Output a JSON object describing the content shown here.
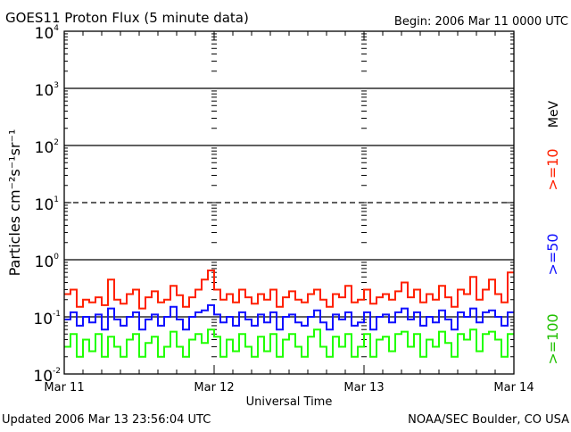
{
  "chart_data": {
    "type": "line",
    "title": "GOES11 Proton Flux (5 minute data)",
    "begin_label": "Begin: 2006 Mar 11 0000 UTC",
    "xlabel": "Universal Time",
    "ylabel": "Particles cm⁻²s⁻¹sr⁻¹",
    "y_scale": "log",
    "ylim": [
      0.01,
      10000
    ],
    "xlim_days": [
      0,
      3
    ],
    "x_tick_labels": [
      "Mar 11",
      "Mar 12",
      "Mar 13",
      "Mar 14"
    ],
    "y_tick_labels": [
      {
        "base": "10",
        "exp": "4",
        "value": 10000
      },
      {
        "base": "10",
        "exp": "3",
        "value": 1000
      },
      {
        "base": "10",
        "exp": "2",
        "value": 100
      },
      {
        "base": "10",
        "exp": "1",
        "value": 10
      },
      {
        "base": "10",
        "exp": "0",
        "value": 1
      },
      {
        "base": "10",
        "exp": "-1",
        "value": 0.1
      },
      {
        "base": "10",
        "exp": "-2",
        "value": 0.01
      }
    ],
    "threshold_lines": [
      {
        "value": 1000,
        "style": "solid"
      },
      {
        "value": 100,
        "style": "solid"
      },
      {
        "value": 10,
        "style": "dashed"
      },
      {
        "value": 1,
        "style": "solid"
      },
      {
        "value": 0.1,
        "style": "solid"
      }
    ],
    "legend_unit": "MeV",
    "series": [
      {
        "name": ">=10",
        "color": "#ff2000",
        "values": [
          0.25,
          0.3,
          0.15,
          0.2,
          0.18,
          0.22,
          0.16,
          0.45,
          0.2,
          0.17,
          0.25,
          0.3,
          0.14,
          0.22,
          0.28,
          0.18,
          0.2,
          0.35,
          0.24,
          0.15,
          0.22,
          0.3,
          0.45,
          0.65,
          0.3,
          0.2,
          0.25,
          0.18,
          0.3,
          0.22,
          0.17,
          0.25,
          0.2,
          0.3,
          0.15,
          0.22,
          0.28,
          0.2,
          0.18,
          0.25,
          0.3,
          0.2,
          0.15,
          0.25,
          0.22,
          0.35,
          0.18,
          0.2,
          0.3,
          0.17,
          0.22,
          0.25,
          0.2,
          0.28,
          0.4,
          0.22,
          0.3,
          0.18,
          0.25,
          0.2,
          0.35,
          0.22,
          0.15,
          0.3,
          0.25,
          0.5,
          0.2,
          0.3,
          0.45,
          0.25,
          0.18,
          0.6
        ]
      },
      {
        "name": ">=50",
        "color": "#1010ff",
        "values": [
          0.09,
          0.12,
          0.07,
          0.1,
          0.08,
          0.11,
          0.06,
          0.14,
          0.09,
          0.07,
          0.1,
          0.12,
          0.06,
          0.09,
          0.11,
          0.07,
          0.1,
          0.15,
          0.09,
          0.06,
          0.1,
          0.12,
          0.13,
          0.16,
          0.11,
          0.08,
          0.1,
          0.07,
          0.12,
          0.09,
          0.07,
          0.11,
          0.08,
          0.12,
          0.06,
          0.1,
          0.11,
          0.08,
          0.07,
          0.1,
          0.13,
          0.08,
          0.06,
          0.11,
          0.09,
          0.12,
          0.07,
          0.08,
          0.12,
          0.06,
          0.1,
          0.11,
          0.08,
          0.12,
          0.14,
          0.09,
          0.12,
          0.07,
          0.1,
          0.08,
          0.13,
          0.09,
          0.06,
          0.12,
          0.1,
          0.14,
          0.08,
          0.12,
          0.13,
          0.1,
          0.07,
          0.12
        ]
      },
      {
        "name": ">=100",
        "color": "#20ff00",
        "values": [
          0.03,
          0.05,
          0.02,
          0.04,
          0.025,
          0.05,
          0.02,
          0.045,
          0.03,
          0.02,
          0.04,
          0.05,
          0.02,
          0.035,
          0.045,
          0.02,
          0.03,
          0.055,
          0.03,
          0.02,
          0.04,
          0.05,
          0.035,
          0.06,
          0.045,
          0.02,
          0.04,
          0.025,
          0.05,
          0.03,
          0.02,
          0.045,
          0.025,
          0.05,
          0.02,
          0.04,
          0.05,
          0.03,
          0.02,
          0.045,
          0.06,
          0.03,
          0.02,
          0.045,
          0.03,
          0.05,
          0.02,
          0.03,
          0.05,
          0.02,
          0.04,
          0.045,
          0.025,
          0.05,
          0.055,
          0.03,
          0.05,
          0.02,
          0.04,
          0.03,
          0.055,
          0.035,
          0.02,
          0.05,
          0.04,
          0.06,
          0.025,
          0.05,
          0.055,
          0.04,
          0.02,
          0.05
        ]
      }
    ]
  },
  "footer": {
    "updated": "Updated 2006 Mar 13 23:56:04 UTC",
    "credit": "NOAA/SEC Boulder, CO USA"
  }
}
